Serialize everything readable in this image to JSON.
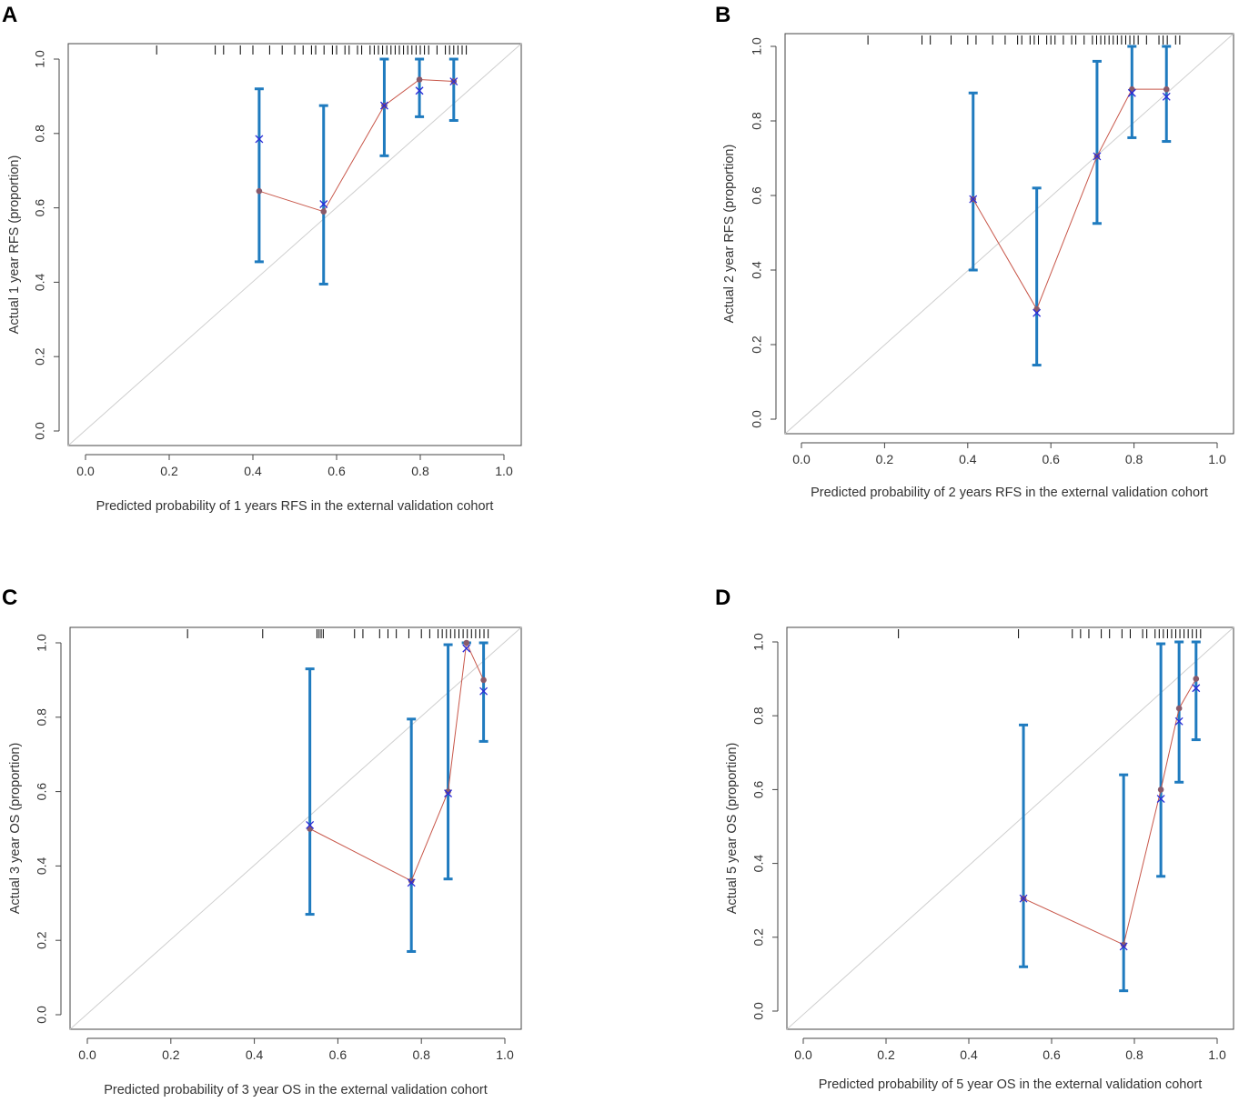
{
  "chart_data": [
    {
      "panel": "A",
      "type": "line",
      "xlabel": "Predicted probability of 1 years RFS in the external validation cohort",
      "ylabel": "Actual 1 year RFS (proportion)",
      "xlim": [
        0,
        1
      ],
      "ylim": [
        0,
        1
      ],
      "x_ticks": [
        "0.0",
        "0.2",
        "0.4",
        "0.6",
        "0.8",
        "1.0"
      ],
      "y_ticks": [
        "0.0",
        "0.2",
        "0.4",
        "0.6",
        "0.8",
        "1.0"
      ],
      "series": [
        {
          "name": "observed",
          "x": [
            0.415,
            0.569,
            0.714,
            0.798,
            0.88
          ],
          "y": [
            0.645,
            0.59,
            0.875,
            0.945,
            0.94
          ]
        },
        {
          "name": "ci_lower",
          "x": [
            0.415,
            0.569,
            0.714,
            0.798,
            0.88
          ],
          "y": [
            0.455,
            0.395,
            0.74,
            0.845,
            0.835
          ]
        },
        {
          "name": "ci_upper",
          "x": [
            0.415,
            0.569,
            0.714,
            0.798,
            0.88
          ],
          "y": [
            0.92,
            0.875,
            1.0,
            1.0,
            1.0
          ]
        },
        {
          "name": "bias_corrected",
          "x": [
            0.415,
            0.569,
            0.714,
            0.798,
            0.88
          ],
          "y": [
            0.785,
            0.61,
            0.875,
            0.915,
            0.94
          ]
        }
      ],
      "rug": [
        0.17,
        0.31,
        0.33,
        0.37,
        0.4,
        0.44,
        0.47,
        0.5,
        0.52,
        0.54,
        0.55,
        0.57,
        0.59,
        0.6,
        0.62,
        0.63,
        0.65,
        0.66,
        0.68,
        0.69,
        0.7,
        0.71,
        0.72,
        0.73,
        0.74,
        0.75,
        0.76,
        0.77,
        0.78,
        0.79,
        0.8,
        0.81,
        0.82,
        0.84,
        0.86,
        0.87,
        0.88,
        0.89,
        0.9,
        0.91
      ]
    },
    {
      "panel": "B",
      "type": "line",
      "xlabel": "Predicted probability of 2 years RFS in the external validation cohort",
      "ylabel": "Actual 2 year RFS (proportion)",
      "xlim": [
        0,
        1
      ],
      "ylim": [
        0,
        1
      ],
      "x_ticks": [
        "0.0",
        "0.2",
        "0.4",
        "0.6",
        "0.8",
        "1.0"
      ],
      "y_ticks": [
        "0.0",
        "0.2",
        "0.4",
        "0.6",
        "0.8",
        "1.0"
      ],
      "series": [
        {
          "name": "observed",
          "x": [
            0.413,
            0.566,
            0.711,
            0.795,
            0.878
          ],
          "y": [
            0.59,
            0.295,
            0.705,
            0.885,
            0.885
          ]
        },
        {
          "name": "ci_lower",
          "x": [
            0.413,
            0.566,
            0.711,
            0.795,
            0.878
          ],
          "y": [
            0.4,
            0.145,
            0.525,
            0.755,
            0.745
          ]
        },
        {
          "name": "ci_upper",
          "x": [
            0.413,
            0.566,
            0.711,
            0.795,
            0.878
          ],
          "y": [
            0.875,
            0.62,
            0.96,
            1.0,
            1.0
          ]
        },
        {
          "name": "bias_corrected",
          "x": [
            0.413,
            0.566,
            0.711,
            0.795,
            0.878
          ],
          "y": [
            0.59,
            0.285,
            0.705,
            0.875,
            0.865
          ]
        }
      ],
      "rug": [
        0.16,
        0.29,
        0.31,
        0.36,
        0.4,
        0.42,
        0.46,
        0.49,
        0.52,
        0.53,
        0.55,
        0.56,
        0.57,
        0.59,
        0.6,
        0.61,
        0.63,
        0.65,
        0.66,
        0.68,
        0.7,
        0.71,
        0.72,
        0.73,
        0.74,
        0.75,
        0.76,
        0.77,
        0.78,
        0.79,
        0.8,
        0.81,
        0.83,
        0.86,
        0.87,
        0.88,
        0.9,
        0.91
      ]
    },
    {
      "panel": "C",
      "type": "line",
      "xlabel": "Predicted probability of 3 year OS in the external validation cohort",
      "ylabel": "Actual 3 year OS (proportion)",
      "xlim": [
        0,
        1
      ],
      "ylim": [
        0,
        1
      ],
      "x_ticks": [
        "0.0",
        "0.2",
        "0.4",
        "0.6",
        "0.8",
        "1.0"
      ],
      "y_ticks": [
        "0.0",
        "0.2",
        "0.4",
        "0.6",
        "0.8",
        "1.0"
      ],
      "series": [
        {
          "name": "observed",
          "x": [
            0.533,
            0.776,
            0.864,
            0.908,
            0.949
          ],
          "y": [
            0.5,
            0.36,
            0.6,
            1.0,
            0.9
          ]
        },
        {
          "name": "ci_lower",
          "x": [
            0.533,
            0.776,
            0.864,
            0.908,
            0.949
          ],
          "y": [
            0.27,
            0.17,
            0.365,
            1.0,
            0.735
          ]
        },
        {
          "name": "ci_upper",
          "x": [
            0.533,
            0.776,
            0.864,
            0.908,
            0.949
          ],
          "y": [
            0.93,
            0.795,
            0.995,
            1.0,
            1.0
          ]
        },
        {
          "name": "bias_corrected",
          "x": [
            0.533,
            0.776,
            0.864,
            0.908,
            0.949
          ],
          "y": [
            0.51,
            0.355,
            0.595,
            0.985,
            0.87
          ]
        }
      ],
      "rug": [
        0.24,
        0.42,
        0.55,
        0.555,
        0.56,
        0.565,
        0.64,
        0.66,
        0.7,
        0.72,
        0.74,
        0.77,
        0.8,
        0.82,
        0.84,
        0.85,
        0.86,
        0.87,
        0.88,
        0.89,
        0.9,
        0.91,
        0.92,
        0.93,
        0.94,
        0.95,
        0.96
      ]
    },
    {
      "panel": "D",
      "type": "line",
      "xlabel": "Predicted probability of 5 year OS in the external validation cohort",
      "ylabel": "Actual 5 year OS (proportion)",
      "xlim": [
        0,
        1
      ],
      "ylim": [
        0,
        1
      ],
      "x_ticks": [
        "0.0",
        "0.2",
        "0.4",
        "0.6",
        "0.8",
        "1.0"
      ],
      "y_ticks": [
        "0.0",
        "0.2",
        "0.4",
        "0.6",
        "0.8",
        "1.0"
      ],
      "series": [
        {
          "name": "observed",
          "x": [
            0.532,
            0.774,
            0.864,
            0.908,
            0.949
          ],
          "y": [
            0.305,
            0.18,
            0.6,
            0.82,
            0.9
          ]
        },
        {
          "name": "ci_lower",
          "x": [
            0.532,
            0.774,
            0.864,
            0.908,
            0.949
          ],
          "y": [
            0.12,
            0.055,
            0.365,
            0.62,
            0.735
          ]
        },
        {
          "name": "ci_upper",
          "x": [
            0.532,
            0.774,
            0.864,
            0.908,
            0.949
          ],
          "y": [
            0.775,
            0.64,
            0.995,
            1.0,
            1.0
          ]
        },
        {
          "name": "bias_corrected",
          "x": [
            0.532,
            0.774,
            0.864,
            0.908,
            0.949
          ],
          "y": [
            0.305,
            0.175,
            0.575,
            0.785,
            0.875
          ]
        }
      ],
      "rug": [
        0.23,
        0.52,
        0.65,
        0.67,
        0.69,
        0.72,
        0.74,
        0.77,
        0.79,
        0.82,
        0.83,
        0.85,
        0.86,
        0.87,
        0.88,
        0.89,
        0.9,
        0.91,
        0.92,
        0.93,
        0.94,
        0.95,
        0.96
      ]
    }
  ]
}
